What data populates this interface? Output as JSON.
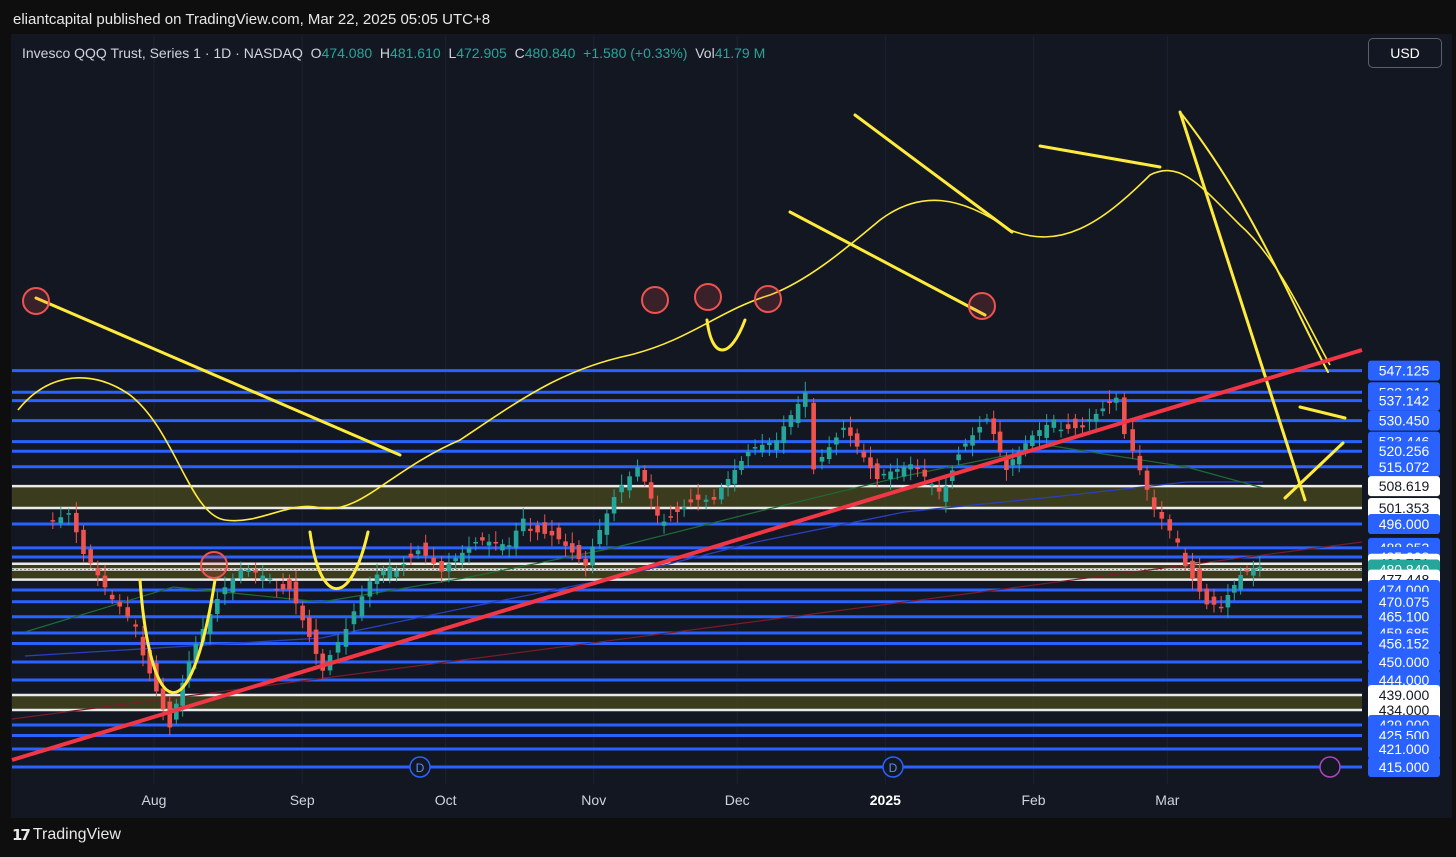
{
  "publisher": "eliantcapital published on TradingView.com, Mar 22, 2025 05:05 UTC+8",
  "legend": {
    "symbol": "Invesco QQQ Trust, Series 1 · 1D · NASDAQ",
    "o_label": "O",
    "o": "474.080",
    "h_label": "H",
    "h": "481.610",
    "l_label": "L",
    "l": "472.905",
    "c_label": "C",
    "c": "480.840",
    "change": "+1.580 (+0.33%)",
    "vol_label": "Vol",
    "vol": "41.79 M"
  },
  "currency_button": "USD",
  "brand": "TradingView",
  "colors": {
    "background": "#131722",
    "level_blue": "#2962ff",
    "level_white": "#ffffff",
    "up": "#26a69a",
    "down": "#ef5350",
    "drawing_yellow": "#ffeb3b",
    "trendline_red": "#f23645",
    "zone_fill": "#4a4a1e"
  },
  "chart_data": {
    "type": "candlestick",
    "title": "Invesco QQQ Trust, Series 1 · 1D · NASDAQ",
    "ylim": [
      413,
      550
    ],
    "x_ticks": [
      "Aug",
      "Sep",
      "Oct",
      "Nov",
      "Dec",
      "2025",
      "Feb",
      "Mar"
    ],
    "y_tick_labels": [
      "547.125",
      "539.914",
      "537.142",
      "530.450",
      "523.446",
      "520.256",
      "515.072",
      "508.619",
      "501.353",
      "496.000",
      "488.053",
      "485.008",
      "482.751",
      "480.840",
      "477.448",
      "474.000",
      "470.075",
      "465.100",
      "459.685",
      "456.152",
      "450.000",
      "444.000",
      "439.000",
      "434.000",
      "429.000",
      "425.500",
      "421.000",
      "415.000"
    ],
    "last_price": 480.84,
    "last_price_label": "480.840",
    "horizontal_levels_blue": [
      547.125,
      539.914,
      537.142,
      530.45,
      523.446,
      520.256,
      515.072,
      496.0,
      488.053,
      485.008,
      474.0,
      470.075,
      465.1,
      459.685,
      456.152,
      450.0,
      444.0,
      429.0,
      425.5,
      421.0,
      415.0
    ],
    "horizontal_levels_white": [
      508.619,
      501.353,
      482.751,
      480.84,
      477.448,
      439.0,
      434.0
    ],
    "zones": [
      [
        501.353,
        508.619
      ],
      [
        477.448,
        482.751
      ],
      [
        434.0,
        439.0
      ]
    ],
    "event_markers": [
      "D",
      "D"
    ],
    "closes_approx": [
      {
        "date": "2024-07-10",
        "close": 496.5
      },
      {
        "date": "2024-07-15",
        "close": 500.5
      },
      {
        "date": "2024-07-18",
        "close": 486
      },
      {
        "date": "2024-07-24",
        "close": 470
      },
      {
        "date": "2024-07-29",
        "close": 460
      },
      {
        "date": "2024-08-05",
        "close": 430
      },
      {
        "date": "2024-08-09",
        "close": 451
      },
      {
        "date": "2024-08-15",
        "close": 471
      },
      {
        "date": "2024-08-20",
        "close": 480
      },
      {
        "date": "2024-08-26",
        "close": 476
      },
      {
        "date": "2024-08-30",
        "close": 476
      },
      {
        "date": "2024-09-06",
        "close": 448
      },
      {
        "date": "2024-09-11",
        "close": 461
      },
      {
        "date": "2024-09-16",
        "close": 476
      },
      {
        "date": "2024-09-20",
        "close": 480
      },
      {
        "date": "2024-09-26",
        "close": 489
      },
      {
        "date": "2024-10-01",
        "close": 481
      },
      {
        "date": "2024-10-08",
        "close": 490
      },
      {
        "date": "2024-10-15",
        "close": 488
      },
      {
        "date": "2024-10-18",
        "close": 496
      },
      {
        "date": "2024-10-24",
        "close": 494
      },
      {
        "date": "2024-10-31",
        "close": 483
      },
      {
        "date": "2024-11-06",
        "close": 505
      },
      {
        "date": "2024-11-11",
        "close": 514
      },
      {
        "date": "2024-11-15",
        "close": 497
      },
      {
        "date": "2024-11-22",
        "close": 505
      },
      {
        "date": "2024-11-27",
        "close": 505
      },
      {
        "date": "2024-12-04",
        "close": 520
      },
      {
        "date": "2024-12-10",
        "close": 523
      },
      {
        "date": "2024-12-16",
        "close": 538
      },
      {
        "date": "2024-12-18",
        "close": 516
      },
      {
        "date": "2024-12-24",
        "close": 529
      },
      {
        "date": "2024-12-31",
        "close": 511
      },
      {
        "date": "2025-01-07",
        "close": 515
      },
      {
        "date": "2025-01-13",
        "close": 505
      },
      {
        "date": "2025-01-17",
        "close": 521
      },
      {
        "date": "2025-01-23",
        "close": 532
      },
      {
        "date": "2025-01-27",
        "close": 514
      },
      {
        "date": "2025-01-31",
        "close": 522
      },
      {
        "date": "2025-02-06",
        "close": 529
      },
      {
        "date": "2025-02-12",
        "close": 530
      },
      {
        "date": "2025-02-19",
        "close": 539
      },
      {
        "date": "2025-02-21",
        "close": 526
      },
      {
        "date": "2025-02-27",
        "close": 500
      },
      {
        "date": "2025-03-04",
        "close": 488
      },
      {
        "date": "2025-03-10",
        "close": 471
      },
      {
        "date": "2025-03-13",
        "close": 469
      },
      {
        "date": "2025-03-17",
        "close": 479
      },
      {
        "date": "2025-03-21",
        "close": 480.84
      }
    ]
  }
}
